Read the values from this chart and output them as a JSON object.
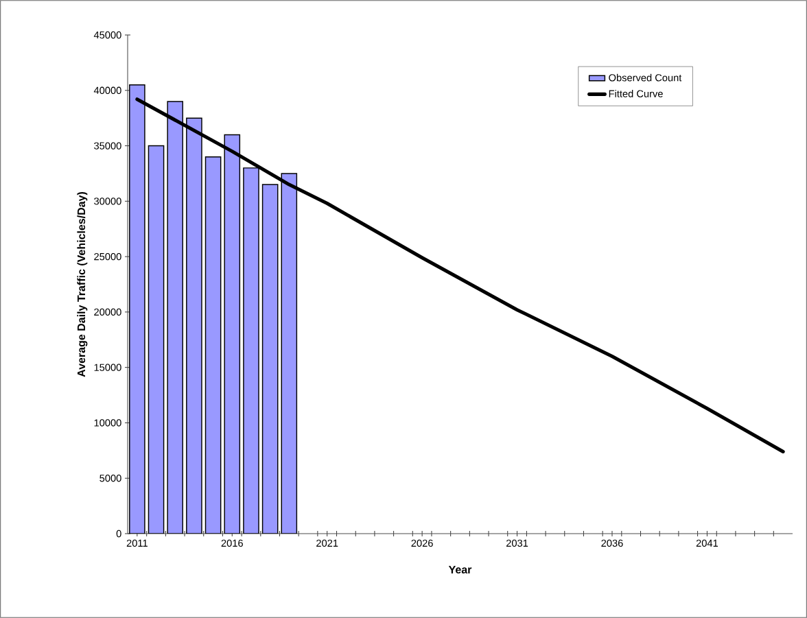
{
  "chart_data": {
    "type": "bar",
    "xlabel": "Year",
    "ylabel": "Average Daily Traffic (Vehicles/Day)",
    "xlim": [
      2010.5,
      2045.5
    ],
    "xticks": [
      2011,
      2016,
      2021,
      2026,
      2031,
      2036,
      2041,
      {
        "value": 2011.5,
        "label": null
      },
      {
        "value": 2012.5,
        "label": null
      },
      {
        "value": 2013.5,
        "label": null
      },
      {
        "value": 2014.5,
        "label": null
      },
      {
        "value": 2015.5,
        "label": null
      },
      {
        "value": 2016.5,
        "label": null
      },
      {
        "value": 2017.5,
        "label": null
      },
      {
        "value": 2018.5,
        "label": null
      },
      {
        "value": 2019.5,
        "label": null
      },
      {
        "value": 2020.5,
        "label": null
      },
      {
        "value": 2021.5,
        "label": null
      },
      {
        "value": 2022.5,
        "label": null
      },
      {
        "value": 2023.5,
        "label": null
      },
      {
        "value": 2024.5,
        "label": null
      },
      {
        "value": 2025.5,
        "label": null
      },
      {
        "value": 2026.5,
        "label": null
      },
      {
        "value": 2027.5,
        "label": null
      },
      {
        "value": 2028.5,
        "label": null
      },
      {
        "value": 2029.5,
        "label": null
      },
      {
        "value": 2030.5,
        "label": null
      },
      {
        "value": 2031.5,
        "label": null
      },
      {
        "value": 2032.5,
        "label": null
      },
      {
        "value": 2033.5,
        "label": null
      },
      {
        "value": 2034.5,
        "label": null
      },
      {
        "value": 2035.5,
        "label": null
      },
      {
        "value": 2036.5,
        "label": null
      },
      {
        "value": 2037.5,
        "label": null
      },
      {
        "value": 2038.5,
        "label": null
      },
      {
        "value": 2039.5,
        "label": null
      },
      {
        "value": 2040.5,
        "label": null
      },
      {
        "value": 2041.5,
        "label": null
      },
      {
        "value": 2042.5,
        "label": null
      },
      {
        "value": 2043.5,
        "label": null
      },
      {
        "value": 2044.5,
        "label": null
      }
    ],
    "ylim": [
      0,
      45000
    ],
    "yticks": [
      0,
      5000,
      10000,
      15000,
      20000,
      25000,
      30000,
      35000,
      40000,
      45000
    ],
    "legend": "top right",
    "series": [
      {
        "name": "Observed Count",
        "color": "#9999ff",
        "x": [
          2011,
          2012,
          2013,
          2014,
          2015,
          2016,
          2017,
          2018,
          2019
        ],
        "values": [
          40500,
          35000,
          39000,
          37500,
          34000,
          36000,
          33000,
          31500,
          32500
        ]
      },
      {
        "name": "Fitted Curve",
        "type": "line",
        "color": "#000000",
        "x": [
          2011,
          2016,
          2019,
          2021,
          2026,
          2031,
          2036,
          2041,
          2045
        ],
        "values": [
          39200,
          34500,
          31500,
          29800,
          24900,
          20200,
          16000,
          11300,
          7400
        ]
      }
    ]
  }
}
